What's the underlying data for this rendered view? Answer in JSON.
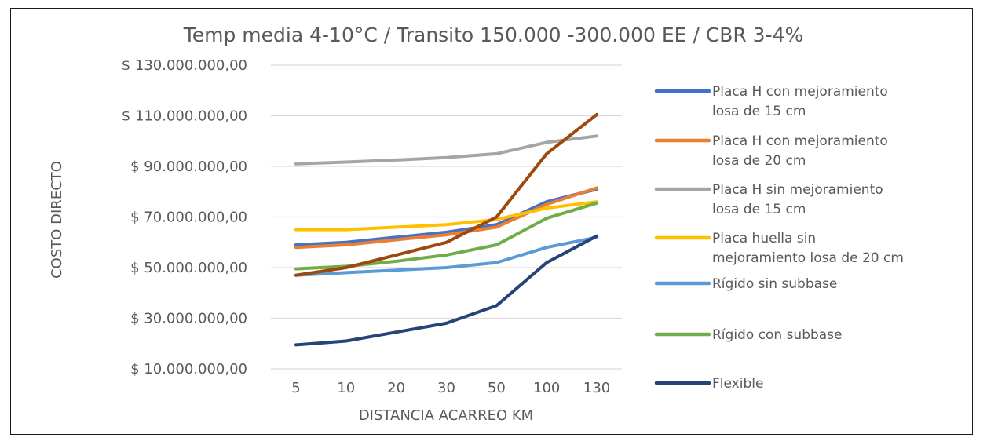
{
  "chart_data": {
    "type": "line",
    "title": "Temp media 4-10°C / Transito 150.000 -300.000 EE / CBR 3-4%",
    "xlabel": "DISTANCIA ACARREO  KM",
    "ylabel": "COSTO DIRECTO",
    "categories": [
      "5",
      "10",
      "20",
      "30",
      "50",
      "100",
      "130"
    ],
    "ylim": [
      10000000,
      130000000
    ],
    "yticks": [
      10000000,
      30000000,
      50000000,
      70000000,
      90000000,
      110000000,
      130000000
    ],
    "ytick_labels": [
      "$ 10.000.000,00",
      "$ 30.000.000,00",
      "$ 50.000.000,00",
      "$ 70.000.000,00",
      "$ 90.000.000,00",
      "$ 110.000.000,00",
      "$ 130.000.000,00"
    ],
    "grid": true,
    "legend_position": "right",
    "series": [
      {
        "name": "Placa H con mejoramiento losa de 15 cm",
        "legend_lines": [
          "Placa H con mejoramiento",
          "losa de 15 cm"
        ],
        "color": "#4472c4",
        "values": [
          59000000,
          60000000,
          62000000,
          64000000,
          67000000,
          76000000,
          81000000
        ]
      },
      {
        "name": "Placa H con mejoramiento losa de 20 cm",
        "legend_lines": [
          "Placa H con mejoramiento",
          "losa de 20 cm"
        ],
        "color": "#ed7d31",
        "values": [
          58000000,
          59000000,
          61000000,
          63000000,
          66000000,
          75000000,
          81500000
        ]
      },
      {
        "name": "Placa H sin mejoramiento losa de 15 cm",
        "legend_lines": [
          "Placa H sin mejoramiento",
          "losa de 15 cm"
        ],
        "color": "#a5a5a5",
        "values": [
          91000000,
          91700000,
          92500000,
          93500000,
          95000000,
          99500000,
          102000000
        ]
      },
      {
        "name": "Placa huella sin mejoramiento losa de 20 cm",
        "legend_lines": [
          "Placa huella sin",
          "mejoramiento losa de 20 cm"
        ],
        "color": "#ffc000",
        "values": [
          65000000,
          65000000,
          66000000,
          67000000,
          69000000,
          73500000,
          76000000
        ]
      },
      {
        "name": "Rígido sin subbase",
        "legend_lines": [
          "Rígido sin subbase"
        ],
        "color": "#5b9bd5",
        "values": [
          47000000,
          48000000,
          49000000,
          50000000,
          52000000,
          58000000,
          62000000
        ]
      },
      {
        "name": "Rígido con subbase",
        "legend_lines": [
          "Rígido con subbase"
        ],
        "color": "#70ad47",
        "values": [
          49500000,
          50500000,
          52500000,
          55000000,
          59000000,
          69500000,
          75500000
        ]
      },
      {
        "name": "Flexible",
        "legend_lines": [
          "Flexible"
        ],
        "color": "#264478",
        "values": [
          19500000,
          21000000,
          24500000,
          28000000,
          35000000,
          52000000,
          62500000
        ]
      },
      {
        "name": "",
        "legend_lines": [],
        "color": "#9e480e",
        "values": [
          47000000,
          50000000,
          55000000,
          60000000,
          70000000,
          95000000,
          110500000
        ]
      }
    ]
  }
}
